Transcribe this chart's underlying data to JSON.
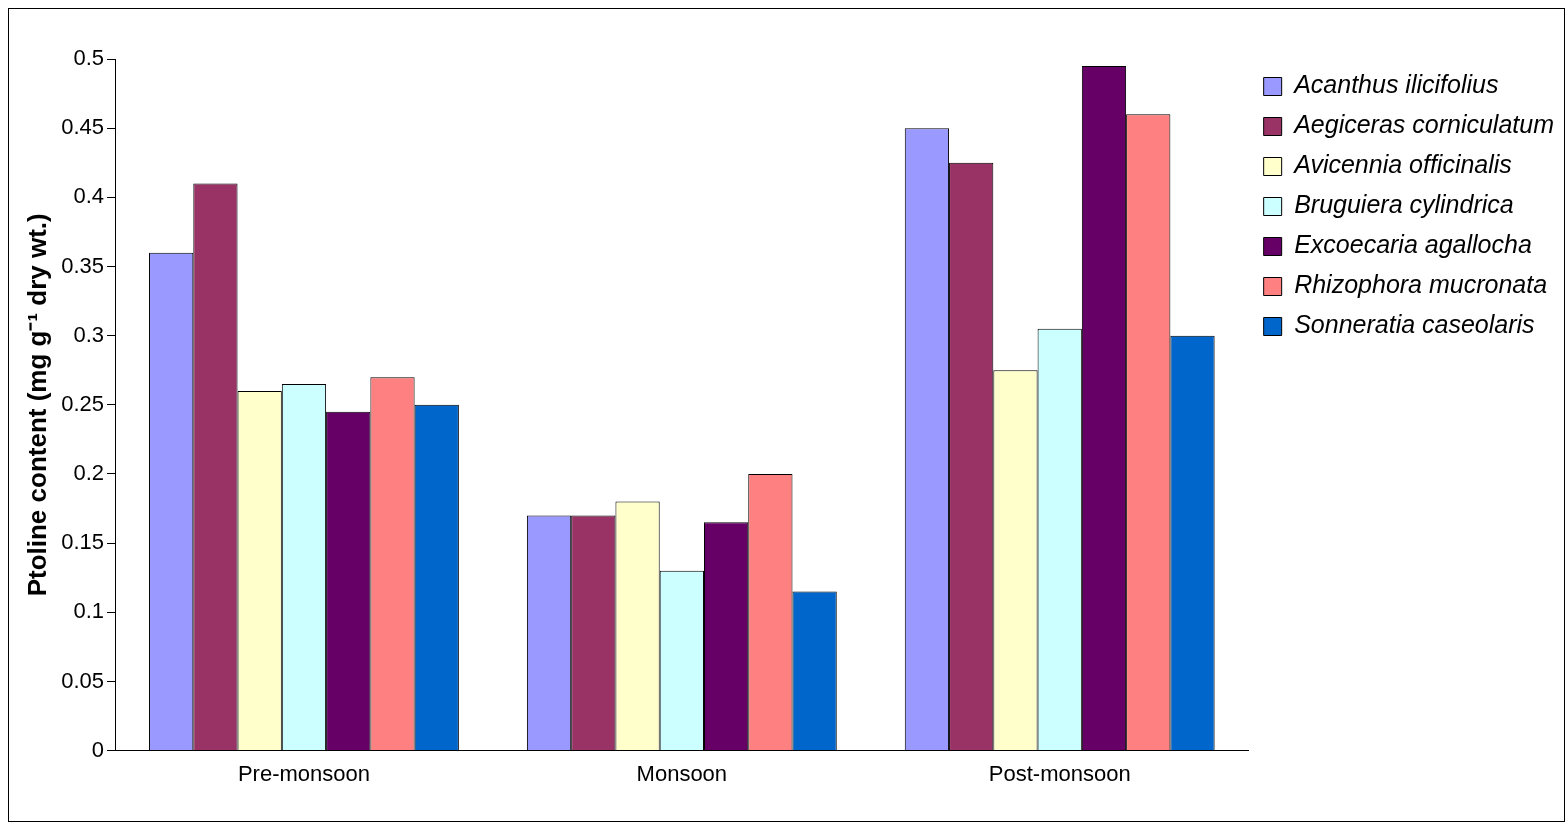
{
  "chart_data": {
    "type": "bar",
    "ylabel": "Ptoline content (mg g⁻¹ dry wt.)",
    "categories": [
      "Pre-monsoon",
      "Monsoon",
      "Post-monsoon"
    ],
    "series": [
      {
        "name": "Acanthus ilicifolius",
        "color": "#9999ff",
        "values": [
          0.36,
          0.17,
          0.45
        ]
      },
      {
        "name": "Aegiceras corniculatum",
        "color": "#993366",
        "values": [
          0.41,
          0.17,
          0.425
        ]
      },
      {
        "name": "Avicennia officinalis",
        "color": "#ffffcc",
        "values": [
          0.26,
          0.18,
          0.275
        ]
      },
      {
        "name": "Bruguiera cylindrica",
        "color": "#ccffff",
        "values": [
          0.265,
          0.13,
          0.305
        ]
      },
      {
        "name": "Excoecaria agallocha",
        "color": "#660066",
        "values": [
          0.245,
          0.165,
          0.495
        ]
      },
      {
        "name": "Rhizophora mucronata",
        "color": "#ff8080",
        "values": [
          0.27,
          0.2,
          0.46
        ]
      },
      {
        "name": "Sonneratia caseolaris",
        "color": "#0066cc",
        "values": [
          0.25,
          0.115,
          0.3
        ]
      }
    ],
    "ylim": [
      0,
      0.5
    ],
    "yticks": [
      0,
      0.05,
      0.1,
      0.15,
      0.2,
      0.25,
      0.3,
      0.35,
      0.4,
      0.45,
      0.5
    ],
    "grid": false,
    "legend": "top right"
  }
}
